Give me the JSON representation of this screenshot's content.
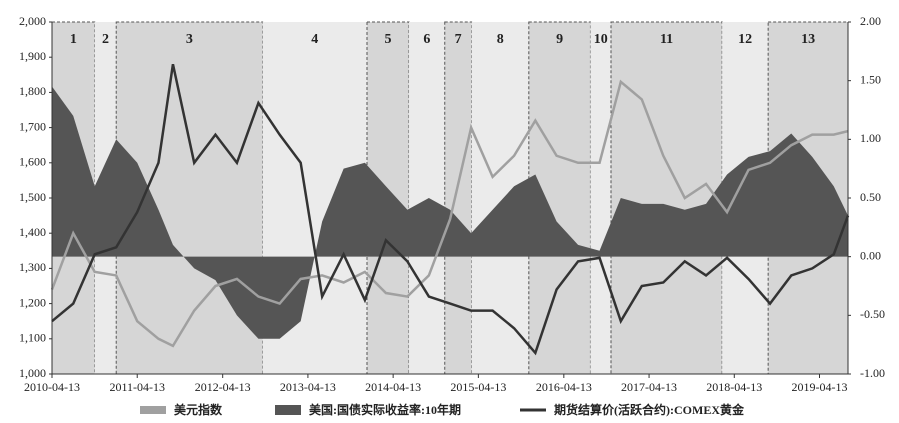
{
  "chart_data": {
    "type": "line",
    "x": [
      "2010-04-13",
      "2010-07-13",
      "2010-10-13",
      "2011-01-13",
      "2011-04-13",
      "2011-07-13",
      "2011-09-13",
      "2011-12-13",
      "2012-03-13",
      "2012-06-13",
      "2012-09-13",
      "2012-12-13",
      "2013-03-13",
      "2013-06-13",
      "2013-09-13",
      "2013-12-13",
      "2014-03-13",
      "2014-06-13",
      "2014-09-13",
      "2014-12-13",
      "2015-03-13",
      "2015-06-13",
      "2015-09-13",
      "2015-12-13",
      "2016-03-13",
      "2016-06-13",
      "2016-09-13",
      "2016-12-13",
      "2017-03-13",
      "2017-06-13",
      "2017-09-13",
      "2017-12-13",
      "2018-03-13",
      "2018-06-13",
      "2018-09-13",
      "2018-12-13",
      "2019-03-13",
      "2019-06-13",
      "2019-08-13"
    ],
    "series": [
      {
        "name": "美元指数",
        "color": "#a0a0a0",
        "kind": "line",
        "values": [
          1240,
          1400,
          1290,
          1280,
          1150,
          1100,
          1080,
          1180,
          1250,
          1270,
          1220,
          1200,
          1270,
          1280,
          1260,
          1290,
          1230,
          1220,
          1280,
          1440,
          1700,
          1560,
          1620,
          1720,
          1620,
          1600,
          1600,
          1830,
          1780,
          1620,
          1500,
          1540,
          1460,
          1580,
          1600,
          1650,
          1680,
          1680,
          1690
        ]
      },
      {
        "name": "美国:国债实际收益率:10年期",
        "color": "#555555",
        "kind": "area",
        "axis": "y2",
        "values": [
          1.45,
          1.2,
          0.6,
          1.0,
          0.8,
          0.4,
          0.1,
          -0.1,
          -0.2,
          -0.5,
          -0.7,
          -0.7,
          -0.55,
          0.3,
          0.75,
          0.8,
          0.6,
          0.4,
          0.5,
          0.4,
          0.2,
          0.4,
          0.6,
          0.7,
          0.3,
          0.1,
          0.05,
          0.5,
          0.45,
          0.45,
          0.4,
          0.45,
          0.7,
          0.85,
          0.9,
          1.05,
          0.85,
          0.6,
          0.35
        ]
      },
      {
        "name": "期货结算价(活跃合约):COMEX黄金",
        "color": "#333333",
        "kind": "line",
        "values": [
          1150,
          1200,
          1340,
          1360,
          1460,
          1600,
          1880,
          1600,
          1680,
          1600,
          1770,
          1680,
          1600,
          1220,
          1340,
          1210,
          1380,
          1320,
          1220,
          1200,
          1180,
          1180,
          1130,
          1060,
          1240,
          1320,
          1330,
          1150,
          1250,
          1260,
          1320,
          1280,
          1330,
          1270,
          1200,
          1280,
          1300,
          1340,
          1450
        ]
      }
    ],
    "regions": [
      {
        "label": "1",
        "start": "2010-04-13",
        "end": "2010-10-13"
      },
      {
        "label": "2",
        "start": "2010-10-13",
        "end": "2011-01-13"
      },
      {
        "label": "3",
        "start": "2011-01-13",
        "end": "2012-10-01"
      },
      {
        "label": "4",
        "start": "2012-10-01",
        "end": "2013-12-22"
      },
      {
        "label": "5",
        "start": "2013-12-22",
        "end": "2014-06-20"
      },
      {
        "label": "6",
        "start": "2014-06-20",
        "end": "2014-11-20"
      },
      {
        "label": "7",
        "start": "2014-11-20",
        "end": "2015-03-15"
      },
      {
        "label": "8",
        "start": "2015-03-15",
        "end": "2015-11-15"
      },
      {
        "label": "9",
        "start": "2015-11-15",
        "end": "2016-08-05"
      },
      {
        "label": "10",
        "start": "2016-08-05",
        "end": "2016-11-01"
      },
      {
        "label": "11",
        "start": "2016-11-01",
        "end": "2018-02-20"
      },
      {
        "label": "12",
        "start": "2018-02-20",
        "end": "2018-09-05"
      },
      {
        "label": "13",
        "start": "2018-09-05",
        "end": "2019-08-13"
      }
    ],
    "xlim": [
      "2010-04-13",
      "2019-08-13"
    ],
    "xticks": [
      "2010-04-13",
      "2011-04-13",
      "2012-04-13",
      "2013-04-13",
      "2014-04-13",
      "2015-04-13",
      "2016-04-13",
      "2017-04-13",
      "2018-04-13",
      "2019-04-13"
    ],
    "ylim": [
      1000,
      2000
    ],
    "yticks": [
      {
        "value": 1000,
        "label": "1,000"
      },
      {
        "value": 1100,
        "label": "1,100"
      },
      {
        "value": 1200,
        "label": "1,200"
      },
      {
        "value": 1300,
        "label": "1,300"
      },
      {
        "value": 1400,
        "label": "1,400"
      },
      {
        "value": 1500,
        "label": "1,500"
      },
      {
        "value": 1600,
        "label": "1,600"
      },
      {
        "value": 1700,
        "label": "1,700"
      },
      {
        "value": 1800,
        "label": "1,800"
      },
      {
        "value": 1900,
        "label": "1,900"
      },
      {
        "value": 2000,
        "label": "2,000"
      }
    ],
    "y2lim": [
      -1,
      2
    ],
    "y2ticks": [
      {
        "value": -1,
        "label": "-1.00"
      },
      {
        "value": -0.5,
        "label": "-0.50"
      },
      {
        "value": 0,
        "label": "0.00"
      },
      {
        "value": 0.5,
        "label": "0.50"
      },
      {
        "value": 1,
        "label": "1.00"
      },
      {
        "value": 1.5,
        "label": "1.50"
      },
      {
        "value": 2,
        "label": "2.00"
      }
    ]
  }
}
